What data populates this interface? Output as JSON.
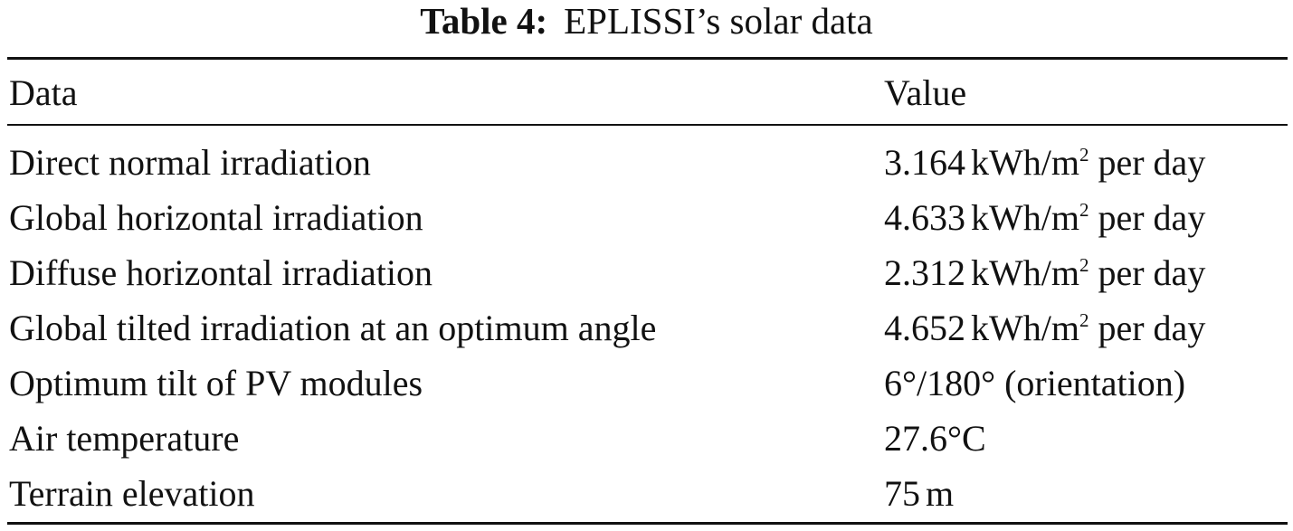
{
  "caption": {
    "label": "Table 4:",
    "text": "EPLISSI’s solar data"
  },
  "table": {
    "headers": [
      "Data",
      "Value"
    ],
    "rows": [
      {
        "data": "Direct normal irradiation",
        "value": "3.164",
        "unit": "kWh/m",
        "sup": "2",
        "suffix": "per day"
      },
      {
        "data": "Global horizontal irradiation",
        "value": "4.633",
        "unit": "kWh/m",
        "sup": "2",
        "suffix": "per day"
      },
      {
        "data": "Diffuse horizontal irradiation",
        "value": "2.312",
        "unit": "kWh/m",
        "sup": "2",
        "suffix": "per day"
      },
      {
        "data": "Global tilted irradiation at an optimum angle",
        "value": "4.652",
        "unit": "kWh/m",
        "sup": "2",
        "suffix": "per day"
      },
      {
        "data": "Optimum tilt of PV modules",
        "value": "6°/180° (orientation)"
      },
      {
        "data": "Air temperature",
        "value": "27.6°C"
      },
      {
        "data": "Terrain elevation",
        "value": "75",
        "unit": "m"
      }
    ]
  }
}
